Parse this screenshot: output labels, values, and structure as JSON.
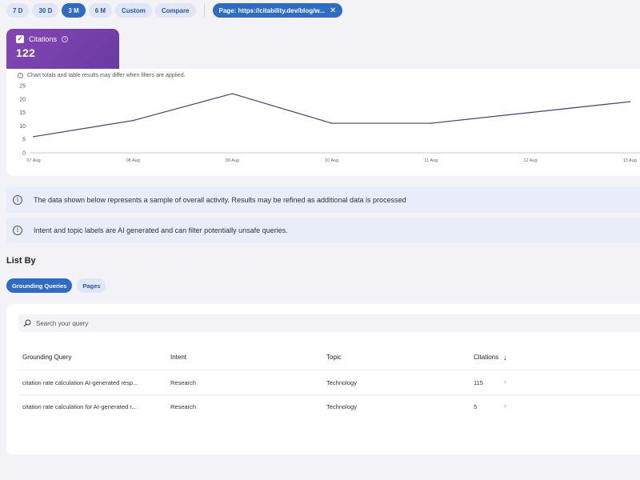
{
  "filters": {
    "ranges": [
      "7 D",
      "30 D",
      "3 M",
      "6 M",
      "Custom",
      "Compare"
    ],
    "active_index": 2,
    "page_filter": "Page: https://citability.dev/blog/w...",
    "page_filter_close": "✕"
  },
  "metric": {
    "label": "Citations",
    "value": "122",
    "checked": true
  },
  "chart": {
    "note": "Chart totals and table results may differ when filters are applied."
  },
  "chart_data": {
    "type": "line",
    "x": [
      "07 Aug",
      "08 Aug",
      "09 Aug",
      "10 Aug",
      "11 Aug",
      "12 Aug",
      "13 Aug"
    ],
    "series": [
      {
        "values": [
          6,
          12,
          22,
          11,
          11,
          15,
          19
        ]
      }
    ],
    "yticks": [
      "0",
      "5",
      "10",
      "15",
      "20",
      "25"
    ],
    "ylim": [
      0,
      25
    ],
    "color": "#4a3a80"
  },
  "banners": [
    "The data shown below represents a sample of overall activity. Results may be refined as additional data is processed",
    "Intent and topic labels are AI generated and can filter potentially unsafe queries."
  ],
  "list_by": {
    "title": "List By",
    "tabs": [
      "Grounding Queries",
      "Pages"
    ],
    "active_tab": 0
  },
  "table": {
    "search_placeholder": "Search your query",
    "columns": [
      "Grounding Query",
      "Intent",
      "Topic",
      "Citations"
    ],
    "sort_indicator": "↓",
    "rows": [
      {
        "query": "citation rate calculation AI-generated resp...",
        "intent": "Research",
        "topic": "Technology",
        "citations": "115"
      },
      {
        "query": "citation rate calculation for AI-generated r...",
        "intent": "Research",
        "topic": "Technology",
        "citations": "5"
      }
    ]
  }
}
